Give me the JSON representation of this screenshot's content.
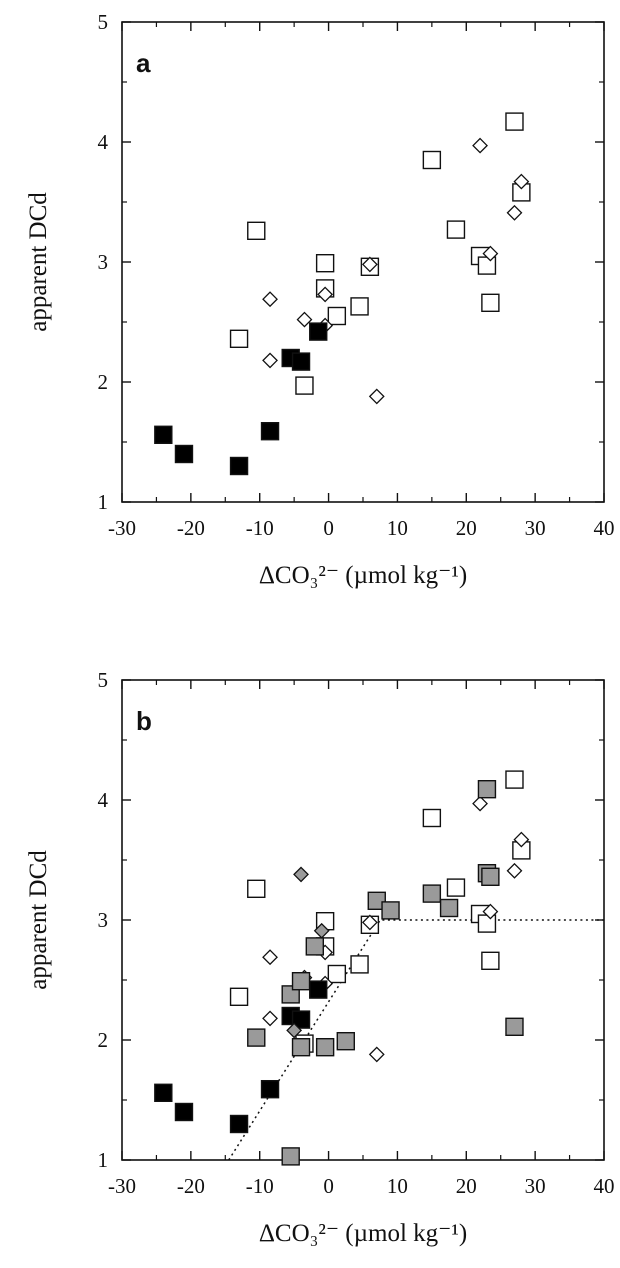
{
  "chart_data": [
    {
      "type": "scatter",
      "panel_label": "a",
      "xlabel": "ΔCO₃²⁻ (µmol kg⁻¹)",
      "ylabel": "apparent DCd",
      "xlim": [
        -30,
        40
      ],
      "ylim": [
        1,
        5
      ],
      "xticks": [
        "-30",
        "-20",
        "-10",
        "0",
        "10",
        "20",
        "30",
        "40"
      ],
      "yticks": [
        "1",
        "2",
        "3",
        "4",
        "5"
      ],
      "grid": false,
      "series": [
        {
          "marker": "open-square",
          "points": [
            [
              -13,
              2.36
            ],
            [
              -10.5,
              3.26
            ],
            [
              -3.5,
              1.97
            ],
            [
              -0.5,
              2.99
            ],
            [
              -0.5,
              2.78
            ],
            [
              1.2,
              2.55
            ],
            [
              4.5,
              2.63
            ],
            [
              6,
              2.96
            ],
            [
              15,
              3.85
            ],
            [
              18.5,
              3.27
            ],
            [
              22,
              3.05
            ],
            [
              23,
              2.97
            ],
            [
              23.5,
              2.66
            ],
            [
              27,
              4.17
            ],
            [
              28,
              3.58
            ]
          ]
        },
        {
          "marker": "open-diamond",
          "points": [
            [
              -8.5,
              2.69
            ],
            [
              -8.5,
              2.18
            ],
            [
              -3.5,
              2.52
            ],
            [
              -0.5,
              2.73
            ],
            [
              -0.5,
              2.47
            ],
            [
              6,
              2.98
            ],
            [
              7,
              1.88
            ],
            [
              22,
              3.97
            ],
            [
              23.5,
              3.07
            ],
            [
              27,
              3.41
            ],
            [
              28,
              3.67
            ]
          ]
        },
        {
          "marker": "filled-square",
          "color": "#000000",
          "points": [
            [
              -24,
              1.56
            ],
            [
              -21,
              1.4
            ],
            [
              -13,
              1.3
            ],
            [
              -8.5,
              1.59
            ],
            [
              -5.5,
              2.2
            ],
            [
              -4,
              2.17
            ],
            [
              -1.5,
              2.42
            ]
          ]
        }
      ]
    },
    {
      "type": "scatter",
      "panel_label": "b",
      "xlabel": "ΔCO₃²⁻ (µmol kg⁻¹)",
      "ylabel": "apparent DCd",
      "xlim": [
        -30,
        40
      ],
      "ylim": [
        1,
        5
      ],
      "xticks": [
        "-30",
        "-20",
        "-10",
        "0",
        "10",
        "20",
        "30",
        "40"
      ],
      "yticks": [
        "1",
        "2",
        "3",
        "4",
        "5"
      ],
      "grid": false,
      "series": [
        {
          "marker": "open-square",
          "points": [
            [
              -13,
              2.36
            ],
            [
              -10.5,
              3.26
            ],
            [
              -3.5,
              1.97
            ],
            [
              -0.5,
              2.99
            ],
            [
              -0.5,
              2.78
            ],
            [
              1.2,
              2.55
            ],
            [
              4.5,
              2.63
            ],
            [
              6,
              2.96
            ],
            [
              15,
              3.85
            ],
            [
              18.5,
              3.27
            ],
            [
              22,
              3.05
            ],
            [
              23,
              2.97
            ],
            [
              23.5,
              2.66
            ],
            [
              27,
              4.17
            ],
            [
              28,
              3.58
            ]
          ]
        },
        {
          "marker": "open-diamond",
          "points": [
            [
              -8.5,
              2.69
            ],
            [
              -8.5,
              2.18
            ],
            [
              -3.5,
              2.52
            ],
            [
              -0.5,
              2.73
            ],
            [
              -0.5,
              2.47
            ],
            [
              6,
              2.98
            ],
            [
              7,
              1.88
            ],
            [
              22,
              3.97
            ],
            [
              23.5,
              3.07
            ],
            [
              27,
              3.41
            ],
            [
              28,
              3.67
            ]
          ]
        },
        {
          "marker": "filled-square",
          "color": "#000000",
          "points": [
            [
              -24,
              1.56
            ],
            [
              -21,
              1.4
            ],
            [
              -13,
              1.3
            ],
            [
              -8.5,
              1.59
            ],
            [
              -5.5,
              2.2
            ],
            [
              -4,
              2.17
            ],
            [
              -1.5,
              2.42
            ]
          ]
        },
        {
          "marker": "gray-square",
          "color": "#9a9a9a",
          "points": [
            [
              -10.5,
              2.02
            ],
            [
              -5.5,
              2.38
            ],
            [
              -5.5,
              1.03
            ],
            [
              -4,
              2.49
            ],
            [
              -4,
              1.94
            ],
            [
              -2,
              2.78
            ],
            [
              -0.5,
              1.94
            ],
            [
              2.5,
              1.99
            ],
            [
              7,
              3.16
            ],
            [
              9,
              3.08
            ],
            [
              15,
              3.22
            ],
            [
              17.5,
              3.1
            ],
            [
              23,
              4.09
            ],
            [
              23,
              3.39
            ],
            [
              23.5,
              3.36
            ],
            [
              27,
              2.11
            ]
          ]
        },
        {
          "marker": "gray-diamond",
          "color": "#9a9a9a",
          "points": [
            [
              -4,
              3.38
            ],
            [
              -5,
              2.08
            ],
            [
              -1,
              2.91
            ]
          ]
        }
      ],
      "fit_line": {
        "style": "dotted",
        "points": [
          [
            -14.5,
            1
          ],
          [
            7.5,
            3
          ],
          [
            40,
            3
          ]
        ]
      }
    }
  ]
}
